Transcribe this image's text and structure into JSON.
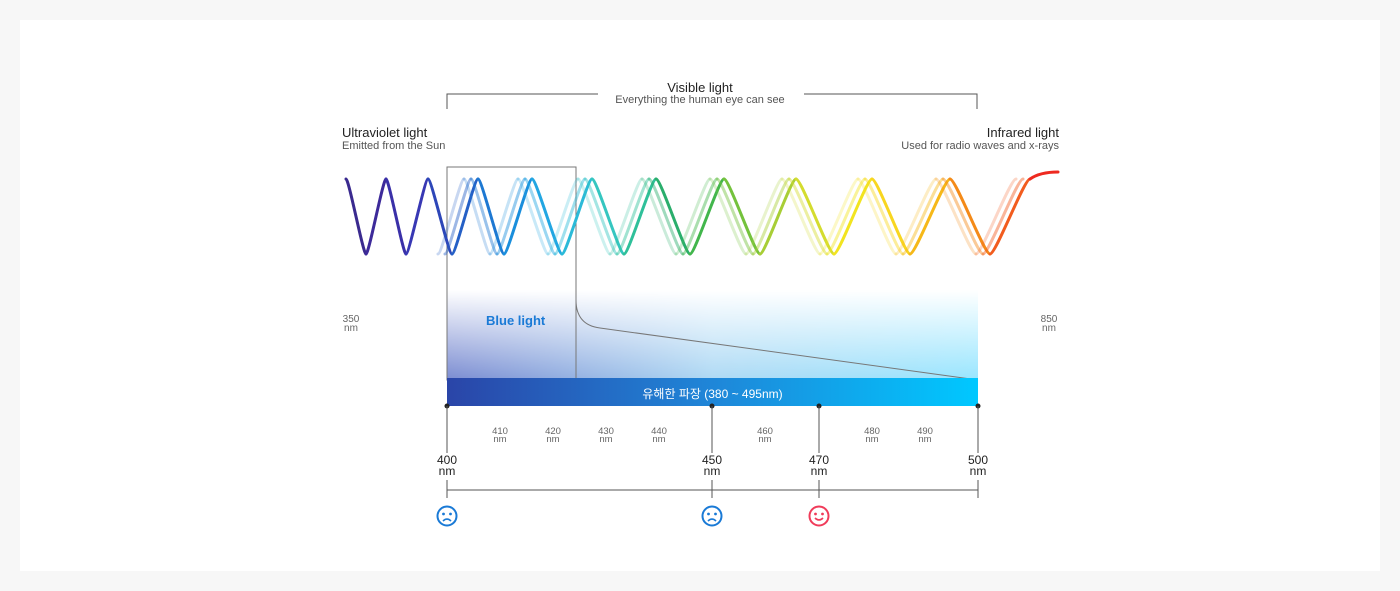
{
  "visible": {
    "title": "Visible light",
    "subtitle": "Everything the human eye can see"
  },
  "uv": {
    "title": "Ultraviolet light",
    "subtitle": "Emitted from the Sun"
  },
  "ir": {
    "title": "Infrared light",
    "subtitle": "Used for radio waves and x-rays"
  },
  "range": {
    "min": "350",
    "max": "850",
    "unit": "nm"
  },
  "blue_light": {
    "label": "Blue light"
  },
  "harmful_band": {
    "label": "유해한 파장 (380 ~ 495nm)",
    "start_color": "#2a4aaa",
    "end_color": "#00c8ff"
  },
  "minor_ticks": [
    "410",
    "420",
    "430",
    "440",
    "460",
    "480",
    "490"
  ],
  "major_ticks": [
    "400",
    "450",
    "470",
    "500"
  ],
  "unit": "nm",
  "faces": [
    {
      "at": "400",
      "mood": "sad",
      "icon": "sad-face-icon",
      "color": "#1a7ad6"
    },
    {
      "at": "450",
      "mood": "sad",
      "icon": "sad-face-icon",
      "color": "#1a7ad6"
    },
    {
      "at": "470",
      "mood": "happy",
      "icon": "smile-face-icon",
      "color": "#f03c5a"
    }
  ]
}
